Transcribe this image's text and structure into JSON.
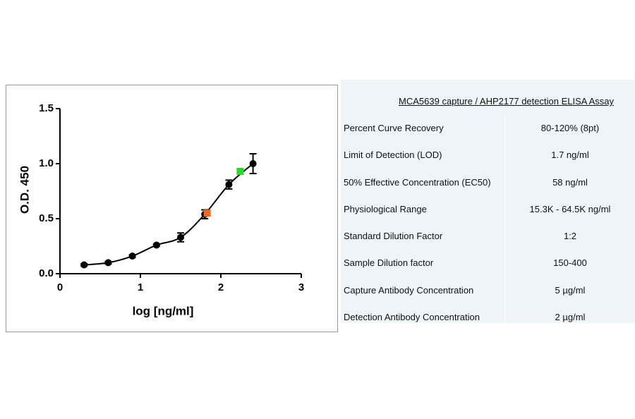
{
  "chart_data": {
    "type": "scatter",
    "xlabel": "log [ng/ml]",
    "ylabel": "O.D. 450",
    "xlim": [
      0,
      3
    ],
    "xticks": [
      0,
      1,
      2,
      3
    ],
    "ylim": [
      0,
      1.5
    ],
    "yticks": [
      {
        "value": 0,
        "label": "0.0"
      },
      0.5,
      {
        "value": 1,
        "label": "1.0"
      },
      1.5
    ],
    "series": [
      {
        "color": "#000000",
        "marker": "circle",
        "fit_curve": true,
        "x": [
          0.3,
          0.6,
          0.9,
          1.2,
          1.5,
          1.8,
          2.1,
          2.4
        ],
        "values": [
          0.08,
          0.1,
          0.16,
          0.26,
          0.33,
          0.54,
          0.81,
          1.0
        ],
        "errors": [
          0.01,
          0.01,
          0.01,
          0.01,
          0.04,
          0.04,
          0.04,
          0.09
        ]
      },
      {
        "color": "#f26522",
        "marker": "square",
        "x": [
          1.83
        ],
        "values": [
          0.55
        ]
      },
      {
        "color": "#22dd22",
        "marker": "square",
        "x": [
          2.24
        ],
        "values": [
          0.93
        ]
      }
    ]
  },
  "table": {
    "title": "MCA5639 capture / AHP2177 detection ELISA Assay",
    "rows": [
      [
        "Percent Curve Recovery",
        "80-120% (8pt)"
      ],
      [
        "Limit of Detection (LOD)",
        "1.7 ng/ml"
      ],
      [
        "50% Effective Concentration (EC50)",
        "58 ng/ml"
      ],
      [
        "Physiological Range",
        "15.3K - 64.5K ng/ml"
      ],
      [
        "Standard Dilution Factor",
        "1:2"
      ],
      [
        "Sample Dilution factor",
        "150-400"
      ],
      [
        "Capture Antibody Concentration",
        "5 µg/ml"
      ],
      [
        "Detection Antibody Concentration",
        "2 µg/ml"
      ]
    ]
  }
}
